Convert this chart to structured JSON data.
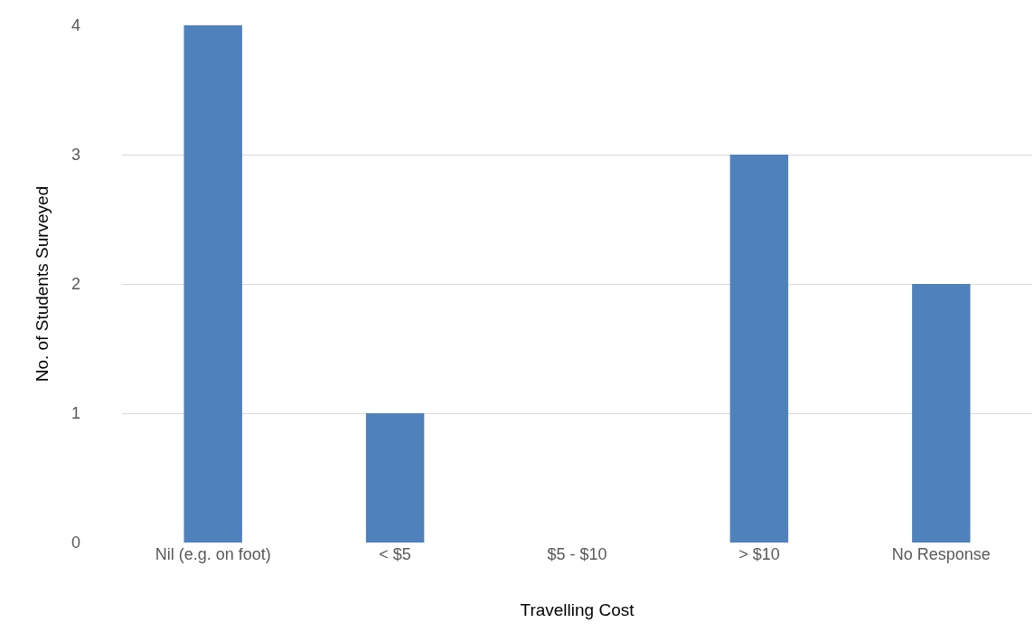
{
  "chart_data": {
    "type": "bar",
    "xlabel": "Travelling Cost",
    "ylabel": "No. of Students Surveyed",
    "categories": [
      "Nil (e.g. on foot)",
      "< $5",
      "$5 - $10",
      "> $10",
      "No Response"
    ],
    "values": [
      4,
      1,
      0,
      3,
      2
    ],
    "color": "#4f81bd",
    "ylim": [
      0,
      4
    ],
    "yticks": [
      0,
      1,
      2,
      3,
      4
    ],
    "grid": "y"
  }
}
